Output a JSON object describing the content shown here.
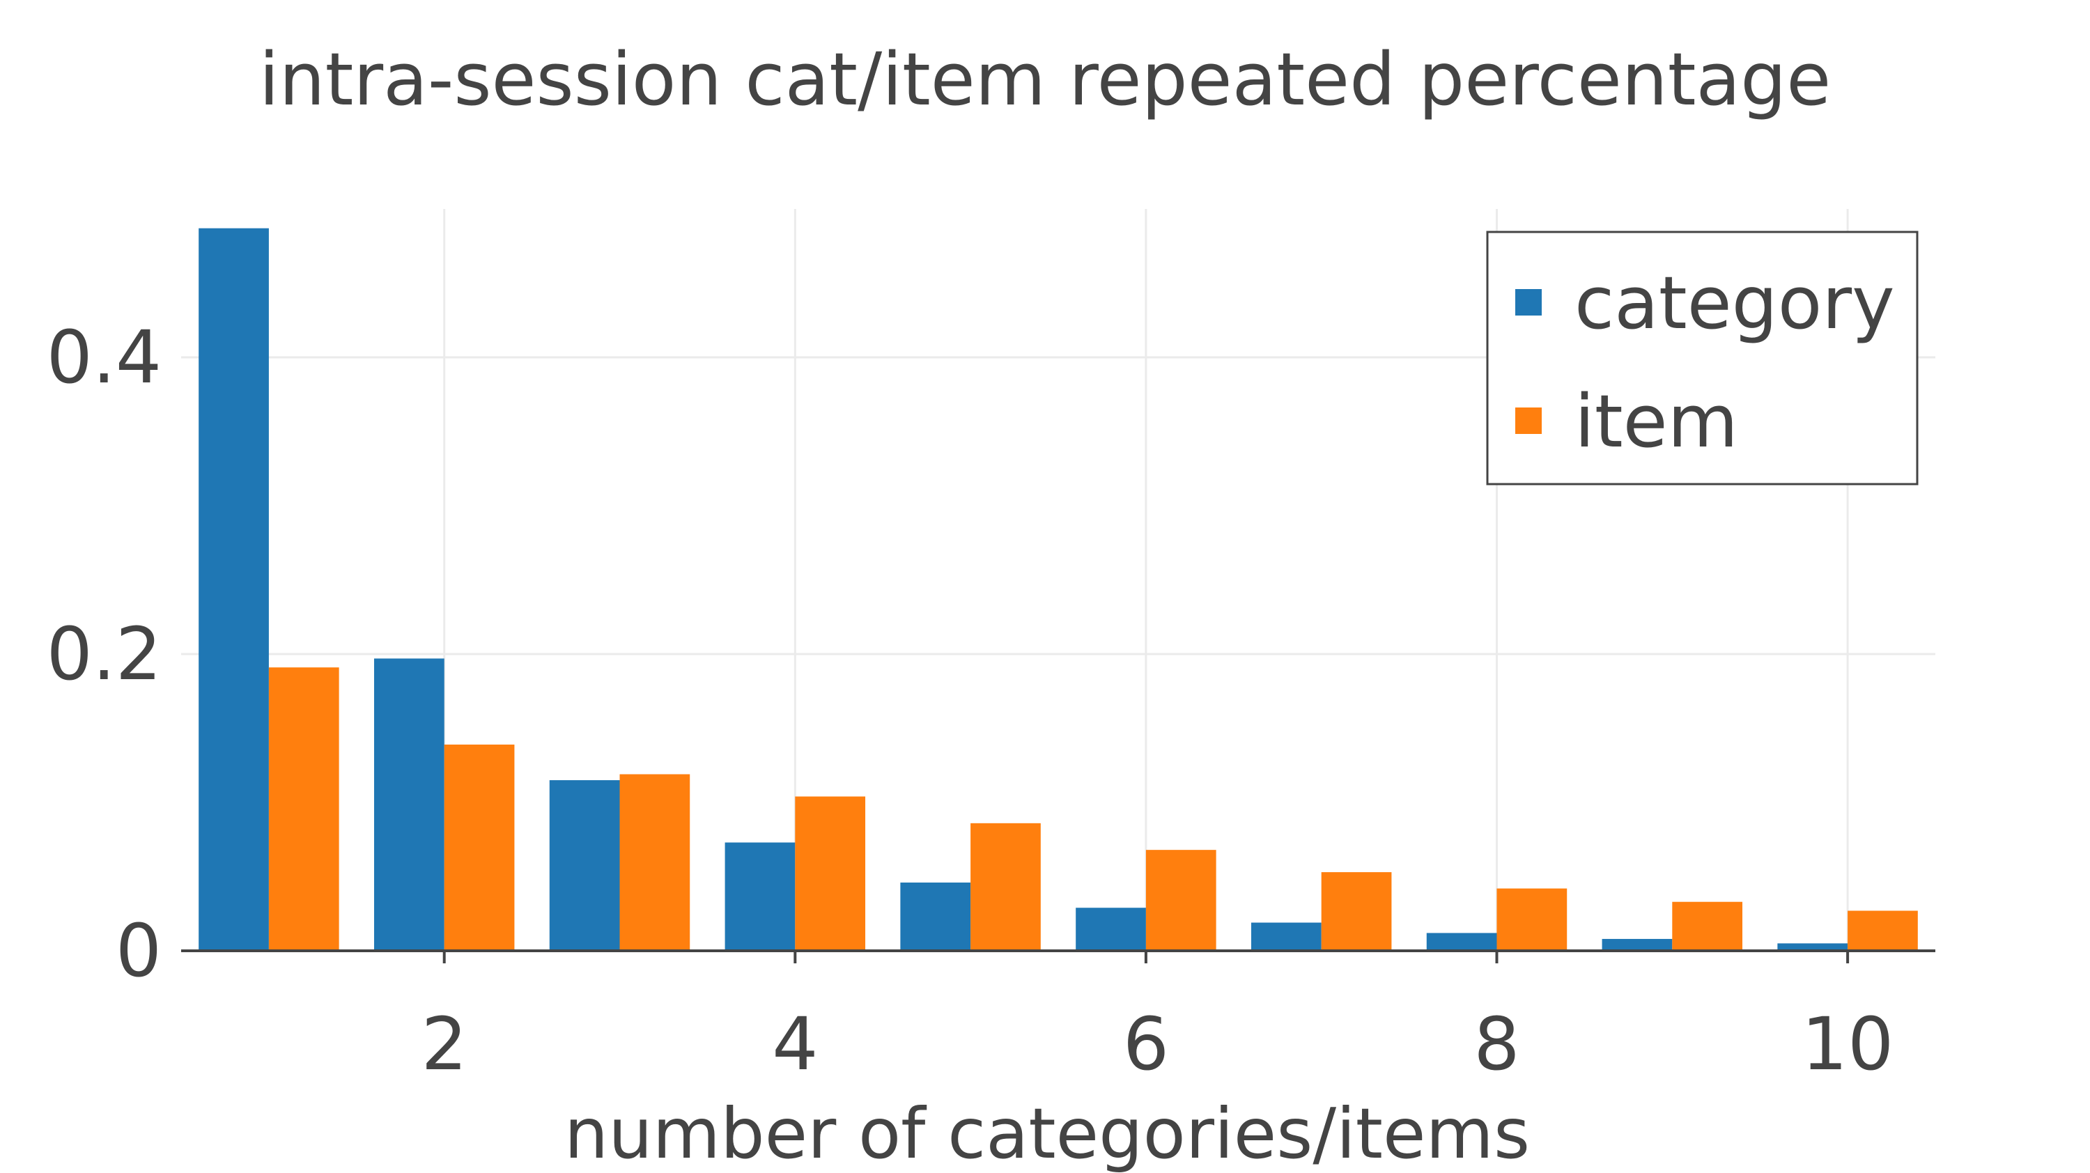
{
  "chart_data": {
    "type": "bar",
    "title": "intra-session cat/item repeated percentage",
    "xlabel": "number of categories/items",
    "ylabel": "",
    "x": [
      1,
      2,
      3,
      4,
      5,
      6,
      7,
      8,
      9,
      10
    ],
    "xticks": [
      2,
      4,
      6,
      8,
      10
    ],
    "xtick_labels": [
      "2",
      "4",
      "6",
      "8",
      "10"
    ],
    "yticks": [
      0,
      0.2,
      0.4
    ],
    "ytick_labels": [
      "0",
      "0.2",
      "0.4"
    ],
    "xlim": [
      0.5,
      10.5
    ],
    "ylim": [
      0,
      0.5
    ],
    "grid": true,
    "legend_position": "top-right",
    "series": [
      {
        "name": "category",
        "color": "#1f77b4",
        "values": [
          0.487,
          0.197,
          0.115,
          0.073,
          0.046,
          0.029,
          0.019,
          0.012,
          0.008,
          0.005
        ]
      },
      {
        "name": "item",
        "color": "#ff7f0e",
        "values": [
          0.191,
          0.139,
          0.119,
          0.104,
          0.086,
          0.068,
          0.053,
          0.042,
          0.033,
          0.027
        ]
      }
    ]
  }
}
